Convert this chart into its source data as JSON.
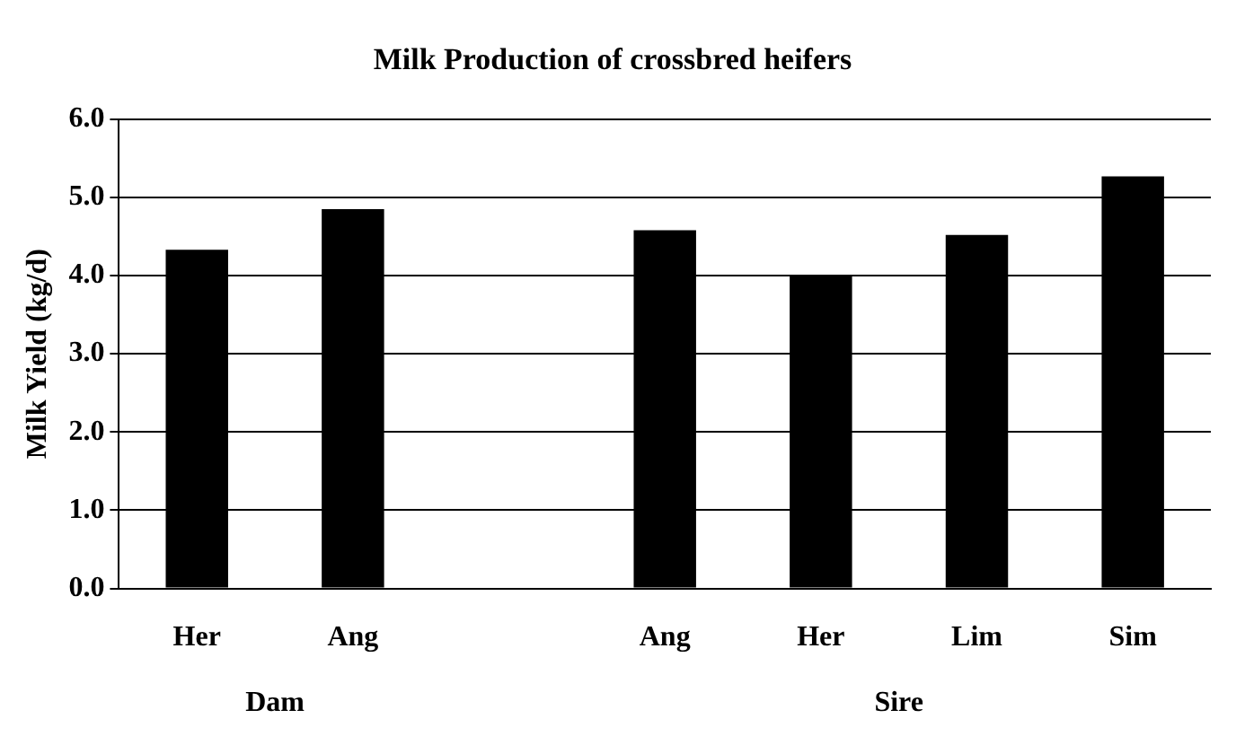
{
  "chart_data": {
    "type": "bar",
    "title": "Milk Production of crossbred heifers",
    "ylabel": "Milk Yield (kg/d)",
    "categories": [
      "Her",
      "Ang",
      null,
      "Ang",
      "Her",
      "Lim",
      "Sim"
    ],
    "values": [
      4.33,
      4.85,
      null,
      4.58,
      4.0,
      4.52,
      5.27
    ],
    "color": "#000000",
    "ylim": [
      0,
      6
    ],
    "yticks": [
      {
        "value": 0,
        "label": "0.0"
      },
      {
        "value": 1,
        "label": "1.0"
      },
      {
        "value": 2,
        "label": "2.0"
      },
      {
        "value": 3,
        "label": "3.0"
      },
      {
        "value": 4,
        "label": "4.0"
      },
      {
        "value": 5,
        "label": "5.0"
      },
      {
        "value": 6,
        "label": "6.0"
      }
    ],
    "grid": "y",
    "legend": false,
    "annotations": [
      "Dam",
      "Sire"
    ]
  }
}
